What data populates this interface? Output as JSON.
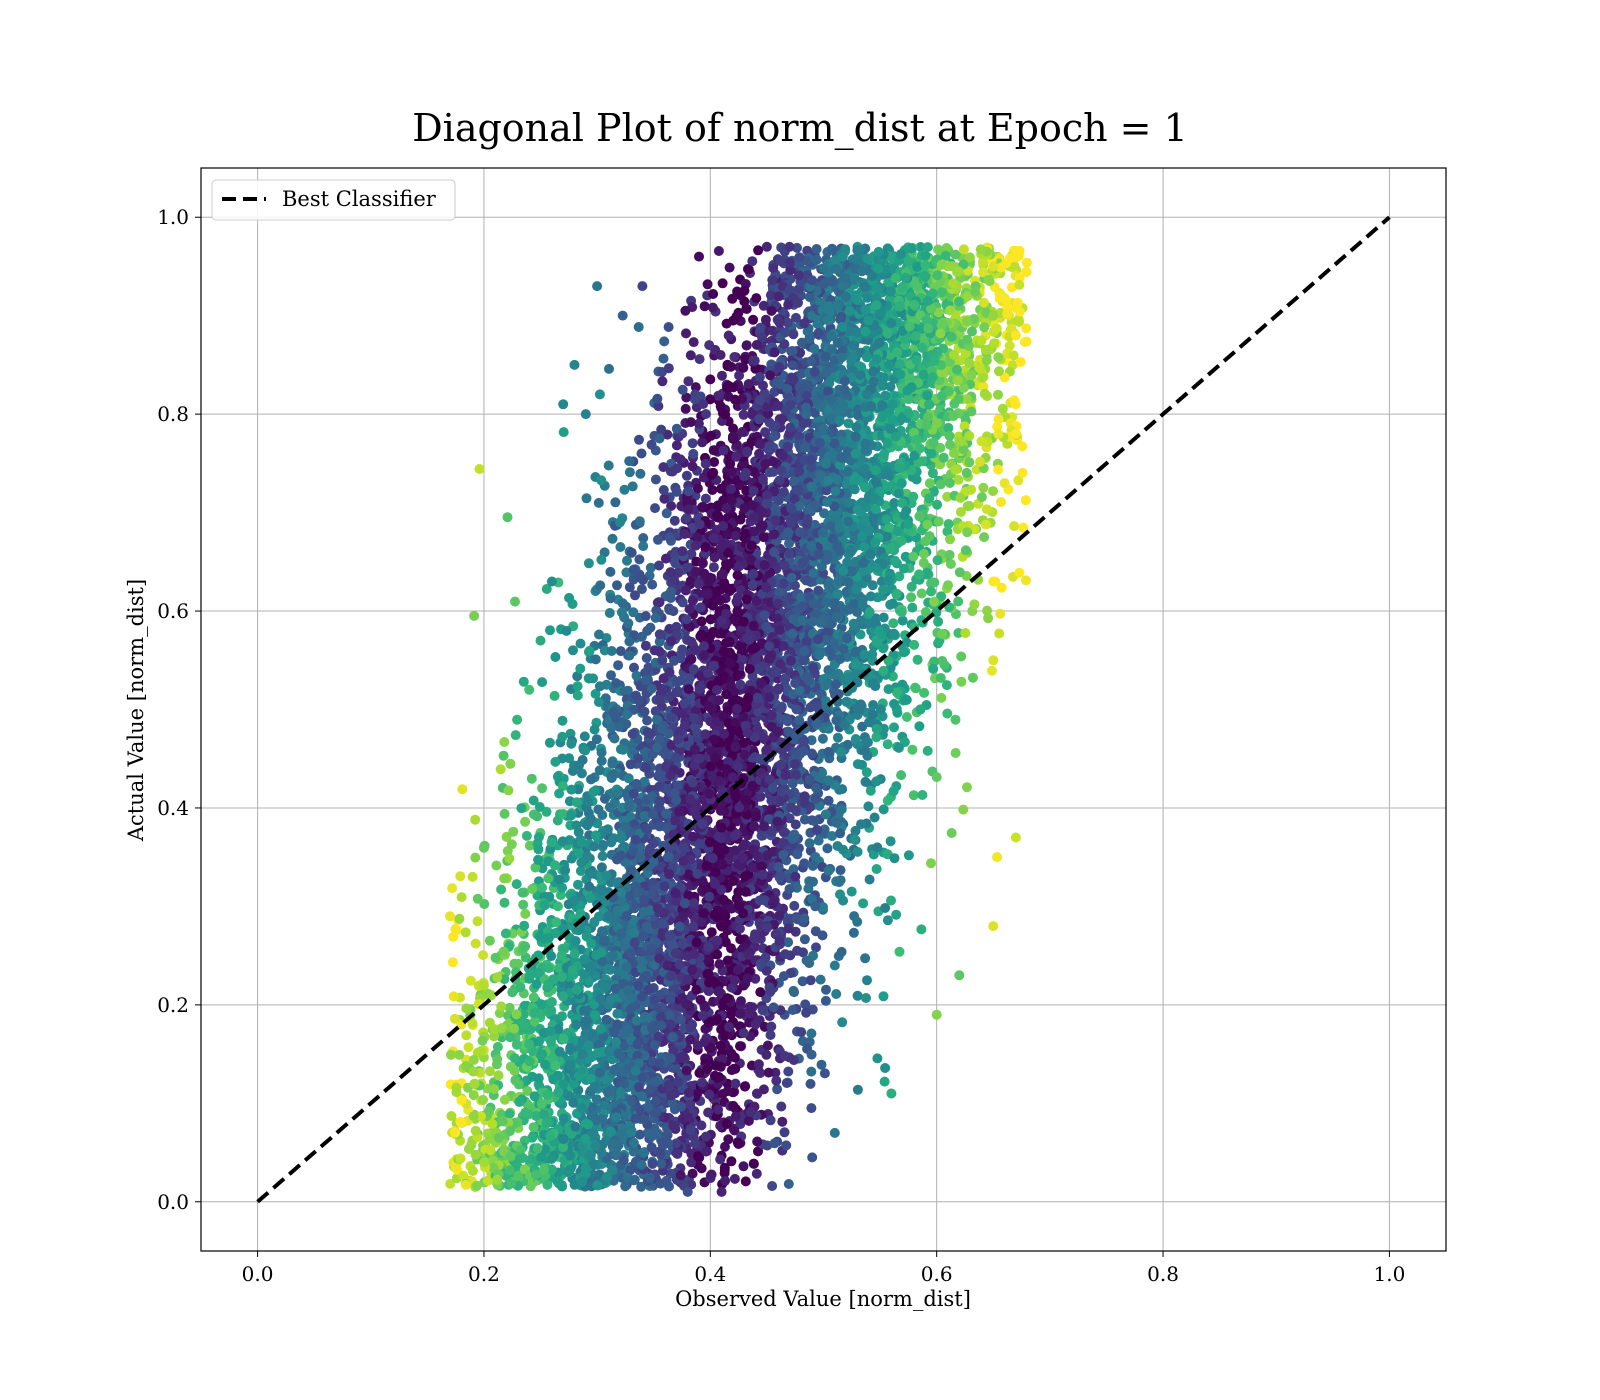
{
  "chart_data": {
    "type": "scatter",
    "title": "Diagonal Plot of norm_dist at Epoch = 1",
    "xlabel": "Observed Value [norm_dist]",
    "ylabel": "Actual Value [norm_dist]",
    "xlim": [
      -0.05,
      1.05
    ],
    "ylim": [
      -0.05,
      1.05
    ],
    "xticks": [
      "0.0",
      "0.2",
      "0.4",
      "0.6",
      "0.8",
      "1.0"
    ],
    "yticks": [
      "0.0",
      "0.2",
      "0.4",
      "0.6",
      "0.8",
      "1.0"
    ],
    "xtick_values": [
      0.0,
      0.2,
      0.4,
      0.6,
      0.8,
      1.0
    ],
    "ytick_values": [
      0.0,
      0.2,
      0.4,
      0.6,
      0.8,
      1.0
    ],
    "grid": true,
    "legend": {
      "placement": "top-left",
      "entries": [
        "Best Classifier"
      ]
    },
    "colormap": "viridis",
    "reference_line": {
      "name": "Best Classifier",
      "x": [
        0.0,
        1.0
      ],
      "y": [
        0.0,
        1.0
      ],
      "style": "dashed",
      "color": "#000000"
    },
    "scatter": {
      "count": 9000,
      "distribution": "approx. Gaussian cloud, x centered near 0.43 (sd ~0.09), y spanning ~0.01–0.97 with positive x–y correlation",
      "samples": [
        {
          "x": 0.3,
          "y": 0.93
        },
        {
          "x": 0.34,
          "y": 0.93
        },
        {
          "x": 0.45,
          "y": 0.97
        },
        {
          "x": 0.47,
          "y": 0.97
        },
        {
          "x": 0.39,
          "y": 0.96
        },
        {
          "x": 0.28,
          "y": 0.85
        },
        {
          "x": 0.27,
          "y": 0.81
        },
        {
          "x": 0.29,
          "y": 0.8
        },
        {
          "x": 0.65,
          "y": 0.95
        },
        {
          "x": 0.65,
          "y": 0.9
        },
        {
          "x": 0.67,
          "y": 0.88
        },
        {
          "x": 0.67,
          "y": 0.78
        },
        {
          "x": 0.26,
          "y": 0.63
        },
        {
          "x": 0.25,
          "y": 0.57
        },
        {
          "x": 0.24,
          "y": 0.52
        },
        {
          "x": 0.18,
          "y": 0.08
        },
        {
          "x": 0.2,
          "y": 0.04
        },
        {
          "x": 0.38,
          "y": 0.01
        },
        {
          "x": 0.41,
          "y": 0.01
        },
        {
          "x": 0.51,
          "y": 0.07
        },
        {
          "x": 0.56,
          "y": 0.11
        },
        {
          "x": 0.6,
          "y": 0.19
        },
        {
          "x": 0.65,
          "y": 0.28
        },
        {
          "x": 0.67,
          "y": 0.37
        },
        {
          "x": 0.17,
          "y": 0.29
        },
        {
          "x": 0.19,
          "y": 0.33
        },
        {
          "x": 0.2,
          "y": 0.22
        },
        {
          "x": 0.18,
          "y": 0.18
        },
        {
          "x": 0.62,
          "y": 0.23
        },
        {
          "x": 0.66,
          "y": 0.73
        },
        {
          "x": 0.65,
          "y": 0.63
        },
        {
          "x": 0.65,
          "y": 0.55
        }
      ]
    }
  }
}
